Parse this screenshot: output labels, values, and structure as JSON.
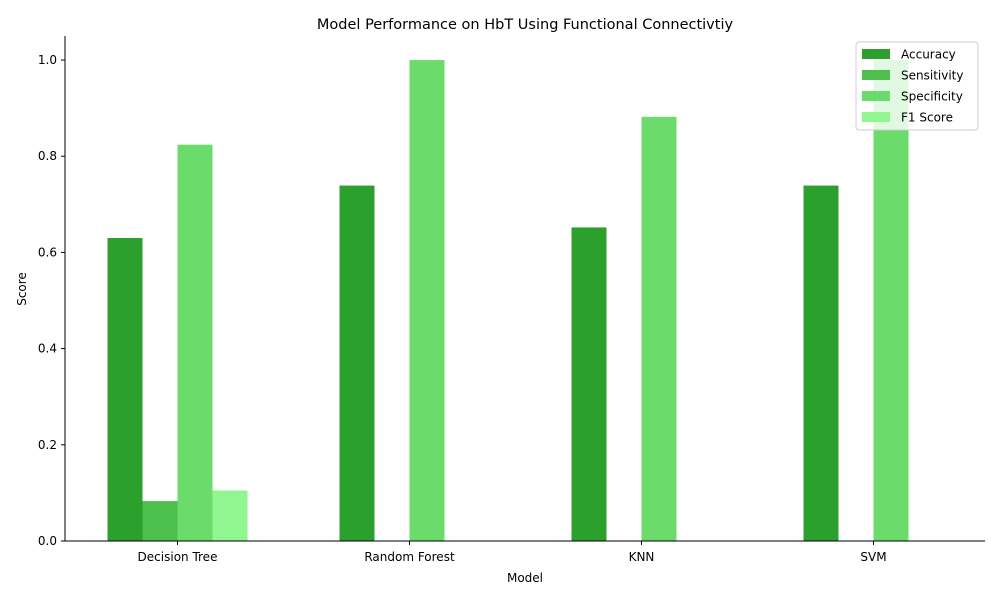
{
  "chart_data": {
    "type": "bar",
    "title": "Model Performance on HbT Using Functional Connectivtiy",
    "xlabel": "Model",
    "ylabel": "Score",
    "categories": [
      "Decision Tree",
      "Random Forest",
      "KNN",
      "SVM"
    ],
    "series": [
      {
        "name": "Accuracy",
        "color": "#2ca02c",
        "values": [
          0.63,
          0.739,
          0.652,
          0.739
        ]
      },
      {
        "name": "Sensitivity",
        "color": "#4cbf4c",
        "values": [
          0.083,
          0.0,
          0.0,
          0.0
        ]
      },
      {
        "name": "Specificity",
        "color": "#6bdc6b",
        "values": [
          0.824,
          1.0,
          0.882,
          1.0
        ]
      },
      {
        "name": "F1 Score",
        "color": "#90f690",
        "values": [
          0.105,
          0.0,
          0.0,
          0.0
        ]
      }
    ],
    "ylim": [
      0,
      1.05
    ],
    "yticks": [
      "0.0",
      "0.2",
      "0.4",
      "0.6",
      "0.8",
      "1.0"
    ],
    "legend_position": "top-right",
    "grid": false
  }
}
